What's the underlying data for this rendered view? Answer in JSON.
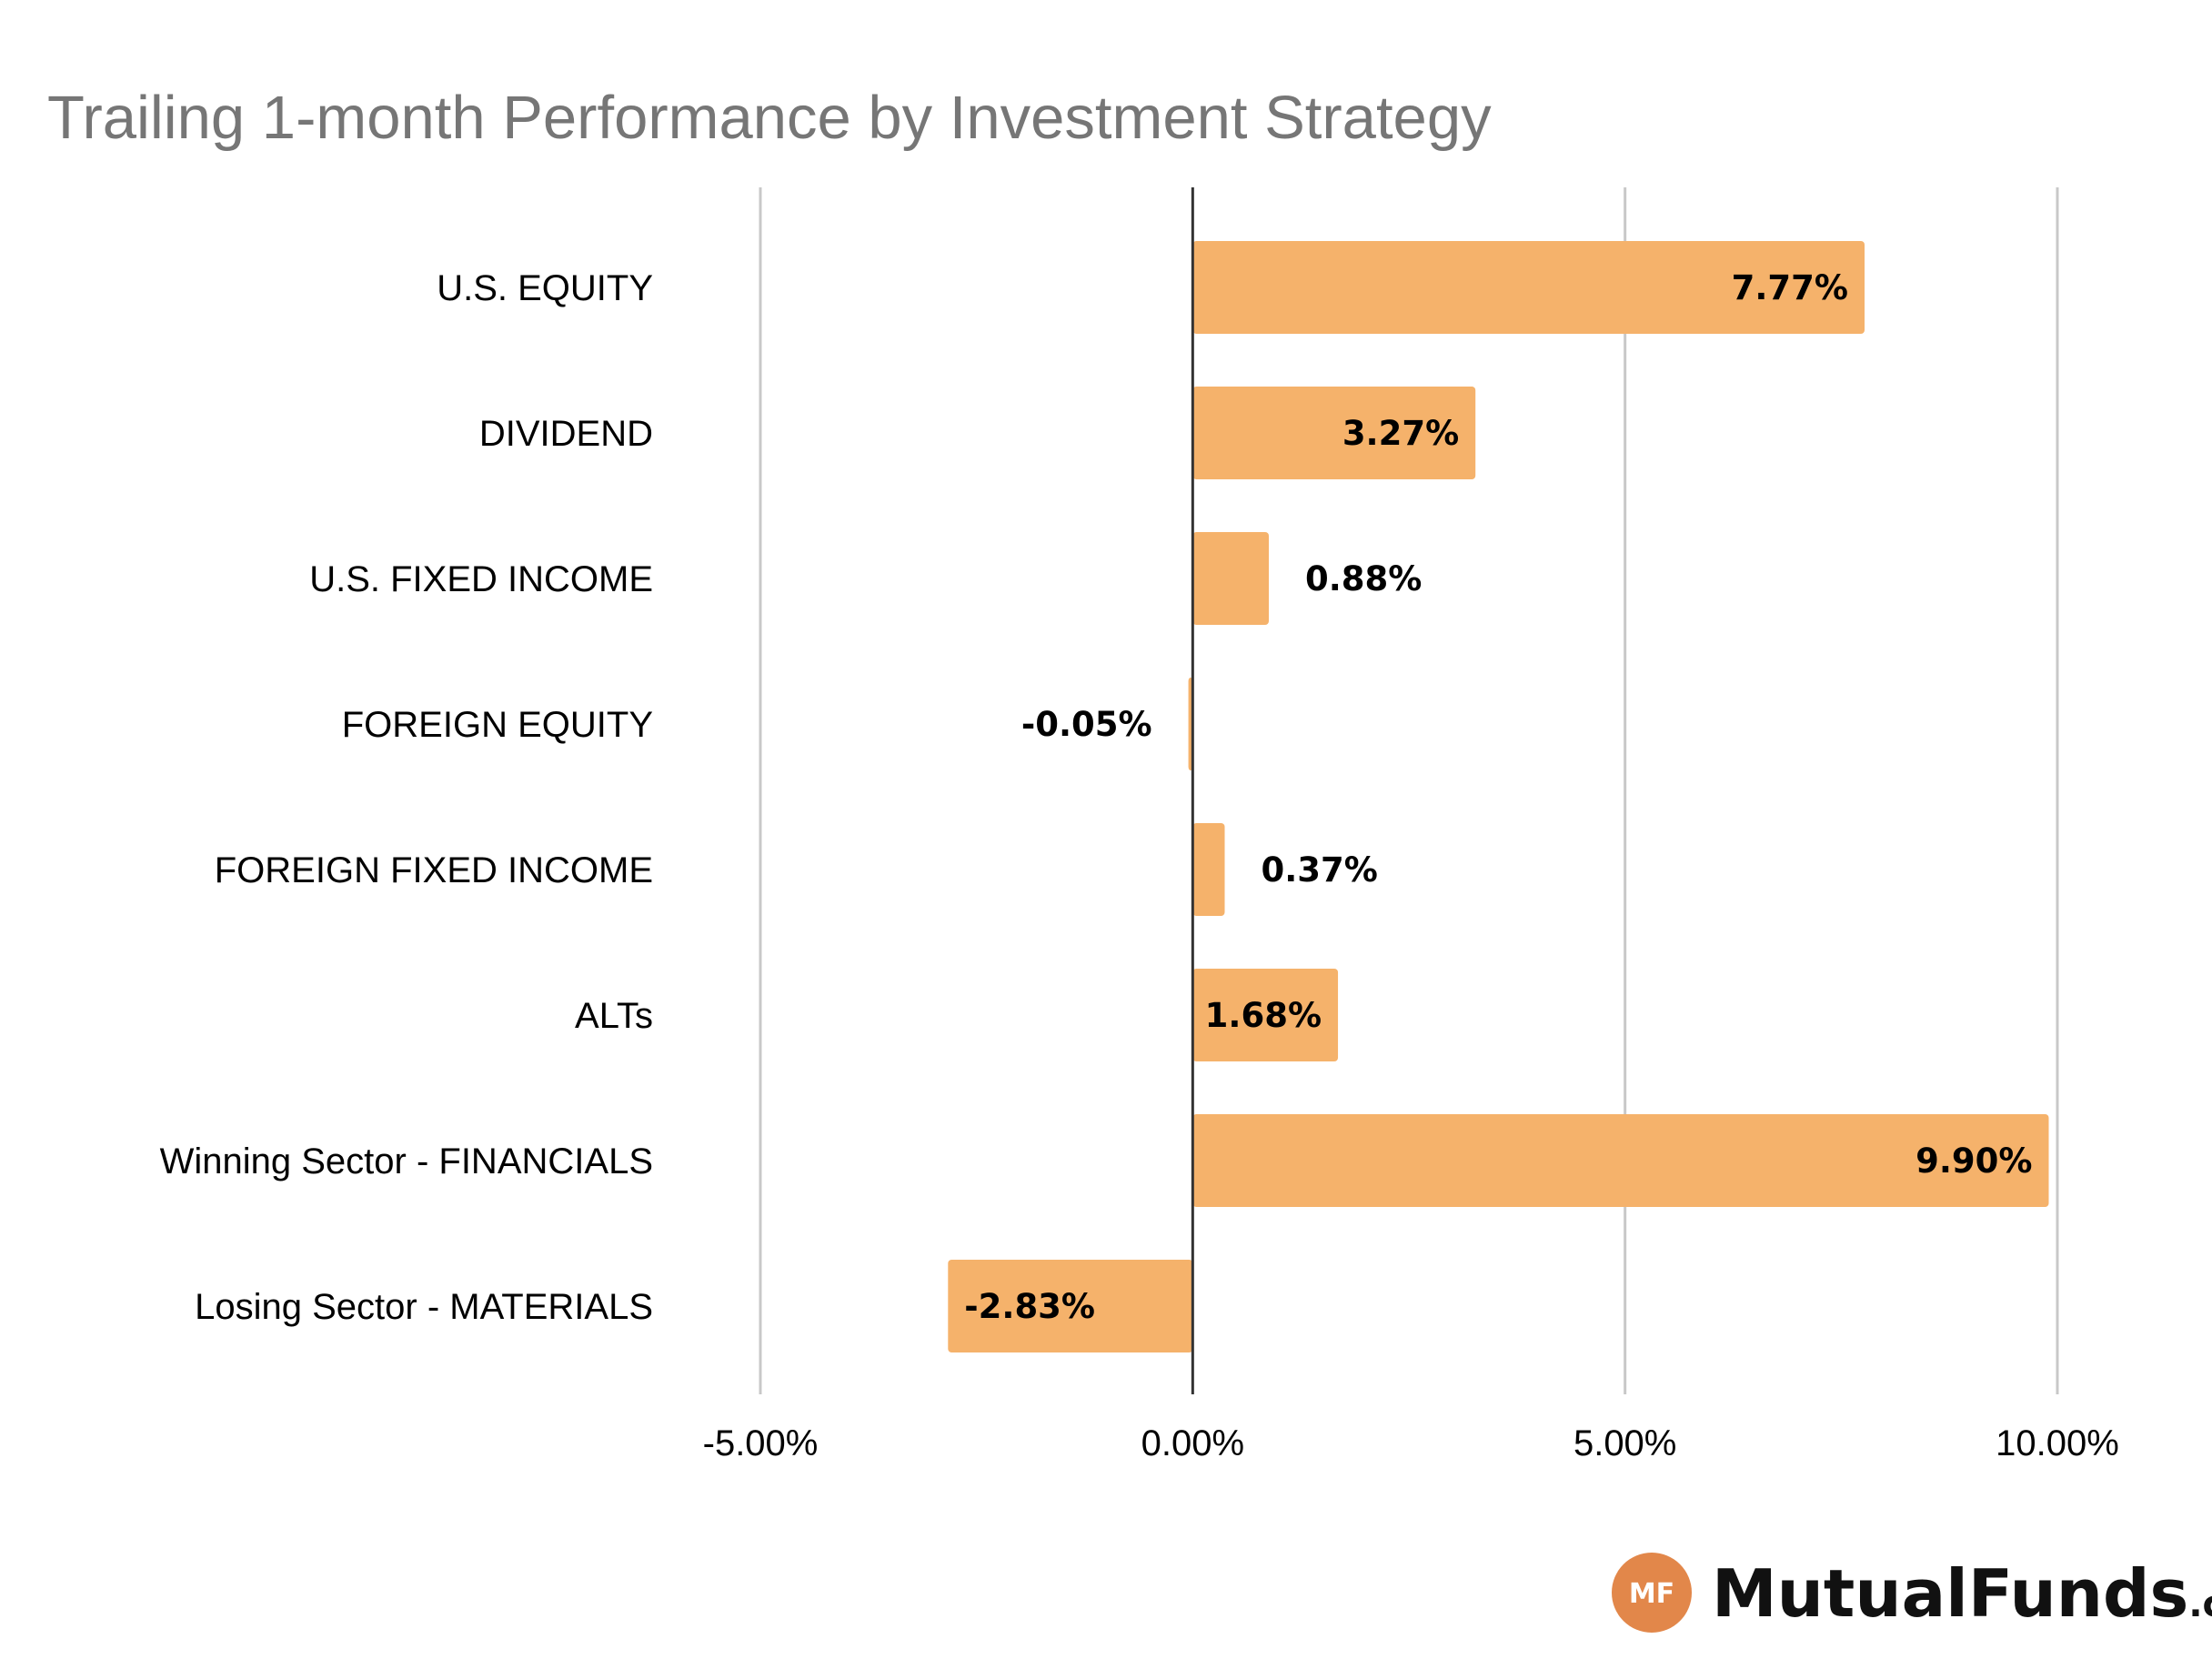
{
  "chart_data": {
    "type": "bar",
    "orientation": "horizontal",
    "title": "Trailing 1-month Performance by Investment Strategy",
    "categories": [
      "U.S. EQUITY",
      "DIVIDEND",
      "U.S. FIXED INCOME",
      "FOREIGN EQUITY",
      "FOREIGN FIXED INCOME",
      "ALTs",
      "Winning Sector - FINANCIALS",
      "Losing Sector - MATERIALS"
    ],
    "values": [
      7.77,
      3.27,
      0.88,
      -0.05,
      0.37,
      1.68,
      9.9,
      -2.83
    ],
    "data_labels": [
      "7.77%",
      "3.27%",
      "0.88%",
      "-0.05%",
      "0.37%",
      "1.68%",
      "9.90%",
      "-2.83%"
    ],
    "xlim": [
      -5,
      10
    ],
    "x_ticks": [
      -5,
      0,
      5,
      10
    ],
    "x_tick_labels": [
      "-5.00%",
      "0.00%",
      "5.00%",
      "10.00%"
    ],
    "xlabel": "",
    "ylabel": "",
    "grid": "vertical",
    "legend": "none",
    "bar_color": "#F5B26B",
    "grid_color": "#C8C8C8",
    "zero_line_color": "#333333",
    "title_color": "#767676"
  },
  "branding": {
    "logo_badge": "MF",
    "logo_name": "MutualFunds",
    "logo_suffix": ".com",
    "badge_color": "#E2874A"
  }
}
